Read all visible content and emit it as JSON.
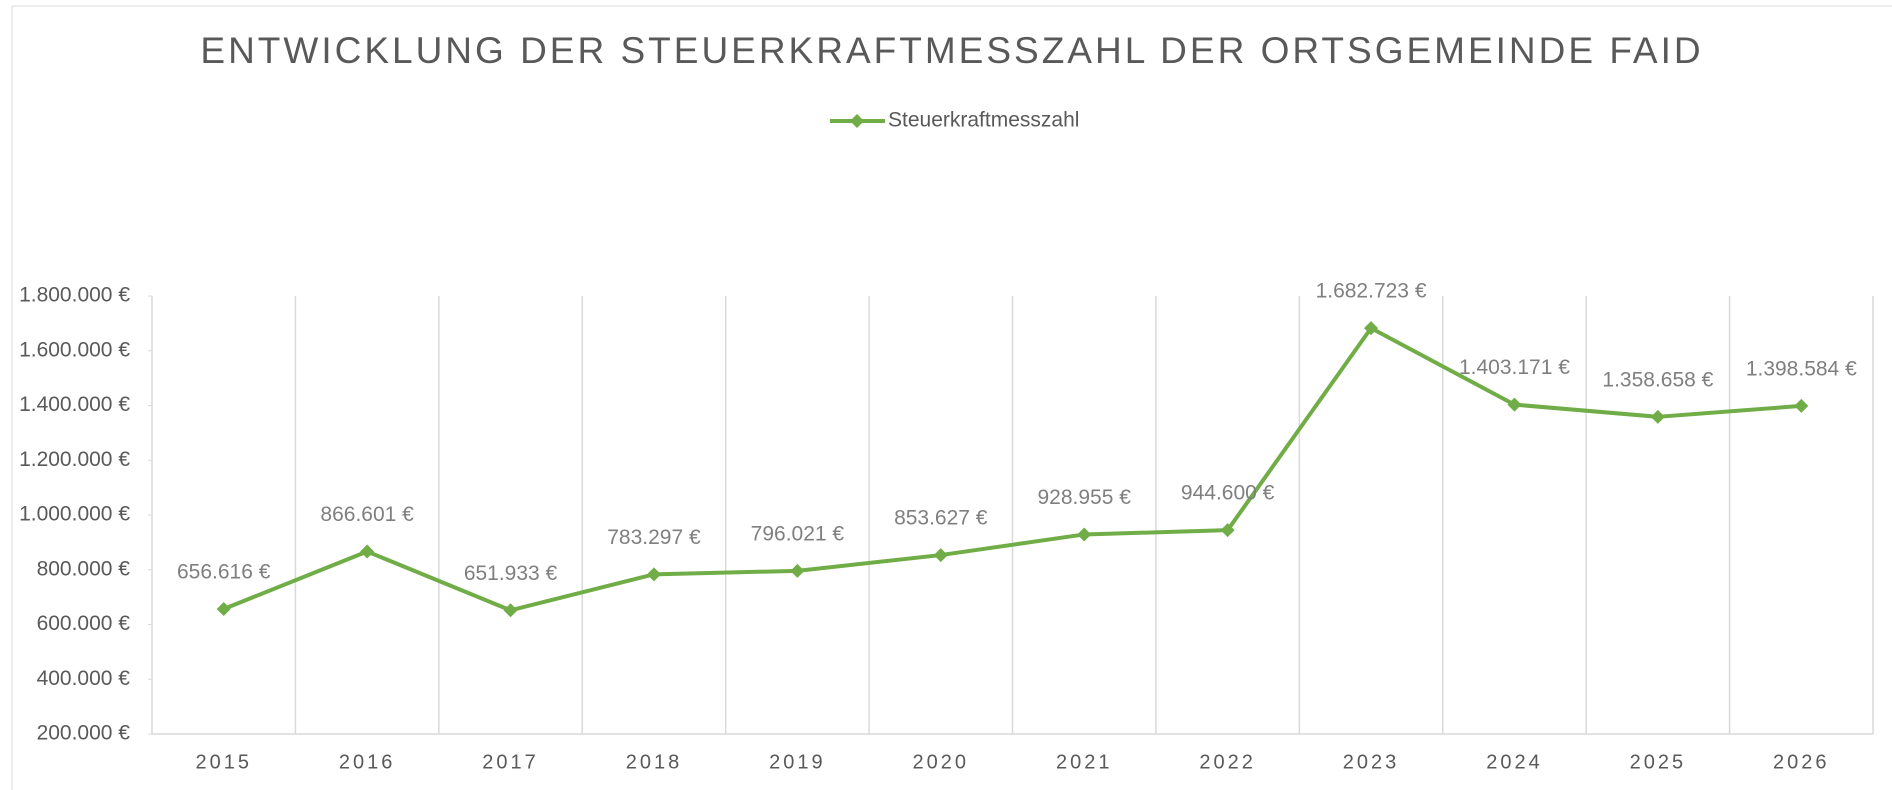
{
  "chart_data": {
    "type": "line",
    "title": "ENTWICKLUNG DER STEUERKRAFTMESSZAHL DER ORTSGEMEINDE FAID",
    "categories": [
      "2015",
      "2016",
      "2017",
      "2018",
      "2019",
      "2020",
      "2021",
      "2022",
      "2023",
      "2024",
      "2025",
      "2026"
    ],
    "series": [
      {
        "name": "Steuerkraftmesszahl",
        "color": "#70ad47",
        "values": [
          656616,
          866601,
          651933,
          783297,
          796021,
          853627,
          928955,
          944600,
          1682723,
          1403171,
          1358658,
          1398584
        ],
        "value_labels": [
          "656.616 €",
          "866.601 €",
          "651.933 €",
          "783.297 €",
          "796.021 €",
          "853.627 €",
          "928.955 €",
          "944.600 €",
          "1.682.723 €",
          "1.403.171 €",
          "1.358.658 €",
          "1.398.584 €"
        ]
      }
    ],
    "ylim": [
      200000,
      1800000
    ],
    "yticks": [
      {
        "value": 200000,
        "label": "200.000 €"
      },
      {
        "value": 400000,
        "label": "400.000 €"
      },
      {
        "value": 600000,
        "label": "600.000 €"
      },
      {
        "value": 800000,
        "label": "800.000 €"
      },
      {
        "value": 1000000,
        "label": "1.000.000 €"
      },
      {
        "value": 1200000,
        "label": "1.200.000 €"
      },
      {
        "value": 1400000,
        "label": "1.400.000 €"
      },
      {
        "value": 1600000,
        "label": "1.600.000 €"
      },
      {
        "value": 1800000,
        "label": "1.800.000 €"
      }
    ],
    "grid": true,
    "legend": "top"
  }
}
